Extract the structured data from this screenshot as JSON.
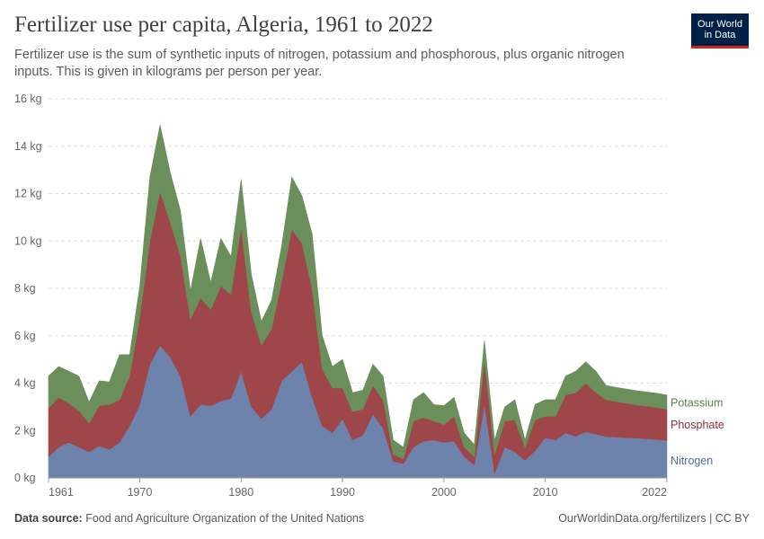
{
  "header": {
    "title": "Fertilizer use per capita, Algeria, 1961 to 2022",
    "subtitle": "Fertilizer use is the sum of synthetic inputs of nitrogen, potassium and phosphorous, plus organic nitrogen inputs. This is given in kilograms per person per year.",
    "logo_line1": "Our World",
    "logo_line2": "in Data"
  },
  "footer": {
    "source_label": "Data source:",
    "source_text": "Food and Agriculture Organization of the United Nations",
    "credit": "OurWorldinData.org/fertilizers | CC BY"
  },
  "colors": {
    "nitrogen": "#6d83ac",
    "phosphate": "#9e4649",
    "potassium": "#6b8f5b",
    "nitrogen_label": "#4c6a9c",
    "phosphate_label": "#883039",
    "potassium_label": "#578145",
    "grid": "#dddddd",
    "tick": "#666666"
  },
  "chart_data": {
    "type": "area",
    "stacked": true,
    "x": [
      1961,
      1962,
      1963,
      1964,
      1965,
      1966,
      1967,
      1968,
      1969,
      1970,
      1971,
      1972,
      1973,
      1974,
      1975,
      1976,
      1977,
      1978,
      1979,
      1980,
      1981,
      1982,
      1983,
      1984,
      1985,
      1986,
      1987,
      1988,
      1989,
      1990,
      1991,
      1992,
      1993,
      1994,
      1995,
      1996,
      1997,
      1998,
      1999,
      2000,
      2001,
      2002,
      2003,
      2004,
      2005,
      2006,
      2007,
      2008,
      2009,
      2010,
      2011,
      2012,
      2013,
      2014,
      2015,
      2016,
      2017,
      2018,
      2019,
      2020,
      2021,
      2022
    ],
    "series": [
      {
        "name": "Nitrogen",
        "values": [
          0.9,
          1.3,
          1.5,
          1.3,
          1.1,
          1.35,
          1.2,
          1.5,
          2.2,
          3.1,
          4.8,
          5.6,
          5.1,
          4.3,
          2.6,
          3.1,
          3.05,
          3.25,
          3.35,
          4.5,
          3.0,
          2.5,
          2.9,
          4.1,
          4.5,
          4.9,
          3.4,
          2.2,
          1.9,
          2.5,
          1.6,
          1.8,
          2.7,
          2.1,
          0.7,
          0.6,
          1.3,
          1.55,
          1.6,
          1.5,
          1.55,
          0.9,
          0.55,
          3.1,
          0.2,
          1.3,
          1.1,
          0.75,
          1.15,
          1.7,
          1.6,
          1.9,
          1.75,
          1.95,
          1.85,
          1.75,
          1.72,
          1.7,
          1.68,
          1.65,
          1.62,
          1.58
        ]
      },
      {
        "name": "Phosphate",
        "values": [
          2.05,
          2.1,
          1.65,
          1.55,
          1.2,
          1.7,
          1.9,
          1.8,
          2.1,
          3.7,
          5.2,
          6.5,
          5.7,
          5.1,
          4.1,
          4.5,
          4.05,
          4.85,
          4.4,
          6.1,
          4.0,
          3.1,
          3.4,
          4.2,
          6.0,
          5.0,
          4.6,
          2.4,
          1.9,
          1.3,
          1.2,
          1.1,
          1.2,
          1.2,
          0.3,
          0.2,
          1.1,
          1.0,
          0.8,
          0.75,
          1.05,
          0.4,
          0.35,
          1.9,
          0.8,
          1.1,
          1.35,
          0.55,
          1.3,
          0.9,
          1.0,
          1.6,
          1.85,
          2.05,
          1.75,
          1.55,
          1.5,
          1.45,
          1.4,
          1.38,
          1.35,
          1.32
        ]
      },
      {
        "name": "Potassium",
        "values": [
          1.35,
          1.3,
          1.35,
          1.45,
          0.9,
          1.05,
          0.95,
          1.9,
          0.9,
          1.3,
          2.7,
          2.8,
          2.1,
          1.9,
          1.2,
          2.5,
          1.15,
          2.0,
          1.6,
          2.0,
          1.6,
          1.0,
          1.2,
          1.5,
          2.2,
          2.0,
          2.3,
          1.4,
          0.9,
          1.2,
          0.8,
          0.8,
          0.9,
          1.0,
          0.6,
          0.5,
          0.9,
          1.05,
          0.7,
          0.8,
          0.8,
          0.6,
          0.5,
          0.8,
          0.6,
          0.6,
          0.85,
          0.3,
          0.65,
          0.7,
          0.7,
          0.8,
          0.9,
          0.9,
          0.9,
          0.6,
          0.6,
          0.6,
          0.6,
          0.6,
          0.6,
          0.6
        ]
      }
    ],
    "ylim": [
      0,
      16
    ],
    "yticks": [
      0,
      2,
      4,
      6,
      8,
      10,
      12,
      14,
      16
    ],
    "ytick_labels": [
      "0 kg",
      "2 kg",
      "4 kg",
      "6 kg",
      "8 kg",
      "10 kg",
      "12 kg",
      "14 kg",
      "16 kg"
    ],
    "xticks": [
      1961,
      1970,
      1980,
      1990,
      2000,
      2010,
      2022
    ],
    "xtick_labels": [
      "1961",
      "1970",
      "1980",
      "1990",
      "2000",
      "2010",
      "2022"
    ],
    "xlim": [
      1961,
      2022
    ],
    "grid": true,
    "legend": "right, inline labels"
  }
}
